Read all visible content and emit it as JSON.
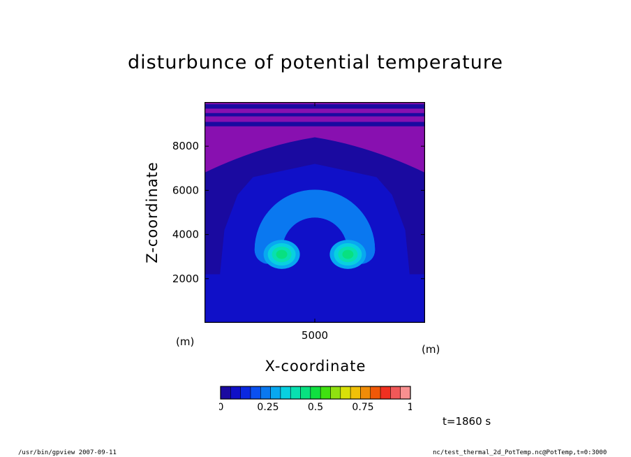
{
  "chart_data": {
    "type": "heatmap",
    "title": "disturbunce of potential temperature",
    "xlabel": "X-coordinate",
    "ylabel": "Z-coordinate",
    "x_unit": "(m)",
    "y_unit": "(m)",
    "xlim": [
      0,
      10000
    ],
    "ylim": [
      0,
      10000
    ],
    "x_ticks": [
      5000
    ],
    "x_tick_labels": [
      "5000"
    ],
    "y_ticks": [
      2000,
      4000,
      6000,
      8000
    ],
    "y_tick_labels": [
      "2000",
      "4000",
      "6000",
      "8000"
    ],
    "grid": false,
    "colorbar": {
      "min": 0,
      "max": 1,
      "levels": 16,
      "ticks": [
        0,
        0.25,
        0.5,
        0.75,
        1
      ],
      "tick_labels": [
        "0",
        "0.25",
        "0.5",
        "0.75",
        "1"
      ],
      "colors": [
        "#1a0aa0",
        "#1010c8",
        "#0a28e0",
        "#0a50f0",
        "#0a78f0",
        "#08a8f0",
        "#08d0e0",
        "#08e0b0",
        "#08e080",
        "#10e040",
        "#40e010",
        "#90e010",
        "#d8e008",
        "#f0c008",
        "#f08c08",
        "#f05808",
        "#f03020",
        "#f05858",
        "#f89090"
      ],
      "background_color": "#8810b0"
    },
    "thermal": {
      "centers": [
        [
          3500,
          3100
        ],
        [
          6500,
          3100
        ]
      ],
      "max_value": 0.3,
      "arch_center": [
        5000,
        3300
      ],
      "arch_outer_radius": 2800,
      "arch_inner_radius": 1400
    },
    "annotation": "t=1860 s"
  },
  "footer": {
    "left": "/usr/bin/gpview   2007-09-11",
    "right": "nc/test_thermal_2d_PotTemp.nc@PotTemp,t=0:3000"
  }
}
